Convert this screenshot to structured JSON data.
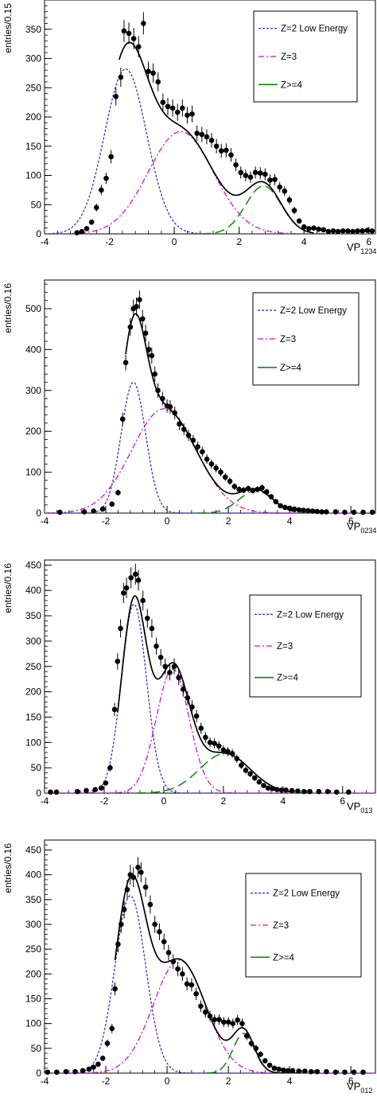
{
  "colors": {
    "axis": "#000000",
    "data": "#000000",
    "fit": "#000000",
    "z2": "#3a32c8",
    "z3": "#cc11cc",
    "z4": "#0a8a0a"
  },
  "chart_data": [
    {
      "type": "scatter",
      "ylabel": "entries/0.15",
      "xlabel_main": "VP",
      "xlabel_sub": "1234",
      "xlim": [
        -4,
        6.2
      ],
      "ylim": [
        0,
        400
      ],
      "xticks": [
        -4,
        -2,
        0,
        2,
        4,
        6
      ],
      "yticks": [
        0,
        50,
        100,
        150,
        200,
        250,
        300,
        350
      ],
      "legend": [
        {
          "key": "z2",
          "label": "Z=2 Low Energy"
        },
        {
          "key": "z3",
          "label": "Z=3"
        },
        {
          "key": "z4",
          "label": "Z>=4"
        }
      ],
      "components": {
        "z2": {
          "A": 282,
          "mu": -1.5,
          "sigma": 0.65
        },
        "z3": {
          "A": 175,
          "mu": 0.2,
          "sigma": 1.0
        },
        "z4": {
          "A": 82,
          "mu": 2.75,
          "sigma": 0.55
        }
      },
      "points": [
        [
          -3.0,
          2
        ],
        [
          -2.85,
          4
        ],
        [
          -2.7,
          9
        ],
        [
          -2.55,
          20
        ],
        [
          -2.4,
          45
        ],
        [
          -2.25,
          75
        ],
        [
          -2.1,
          95
        ],
        [
          -1.95,
          132
        ],
        [
          -1.8,
          235
        ],
        [
          -1.65,
          268
        ],
        [
          -1.55,
          347
        ],
        [
          -1.4,
          343
        ],
        [
          -1.25,
          334
        ],
        [
          -1.1,
          320
        ],
        [
          -0.95,
          360
        ],
        [
          -0.8,
          278
        ],
        [
          -0.65,
          275
        ],
        [
          -0.5,
          260
        ],
        [
          -0.35,
          225
        ],
        [
          -0.2,
          218
        ],
        [
          -0.05,
          215
        ],
        [
          0.1,
          208
        ],
        [
          0.25,
          215
        ],
        [
          0.4,
          203
        ],
        [
          0.55,
          205
        ],
        [
          0.7,
          172
        ],
        [
          0.85,
          170
        ],
        [
          1.0,
          166
        ],
        [
          1.15,
          160
        ],
        [
          1.3,
          150
        ],
        [
          1.45,
          142
        ],
        [
          1.6,
          143
        ],
        [
          1.75,
          135
        ],
        [
          1.9,
          118
        ],
        [
          2.05,
          105
        ],
        [
          2.2,
          100
        ],
        [
          2.35,
          97
        ],
        [
          2.5,
          105
        ],
        [
          2.65,
          104
        ],
        [
          2.8,
          102
        ],
        [
          2.95,
          92
        ],
        [
          3.1,
          93
        ],
        [
          3.25,
          80
        ],
        [
          3.4,
          73
        ],
        [
          3.55,
          58
        ],
        [
          3.7,
          40
        ],
        [
          3.85,
          22
        ],
        [
          4.0,
          12
        ],
        [
          4.15,
          9
        ],
        [
          4.3,
          10
        ],
        [
          4.45,
          8
        ],
        [
          4.6,
          7
        ],
        [
          4.75,
          4
        ],
        [
          4.9,
          5
        ],
        [
          5.05,
          4
        ],
        [
          5.2,
          5
        ],
        [
          5.35,
          5
        ],
        [
          5.5,
          4
        ],
        [
          5.65,
          5
        ],
        [
          5.8,
          5
        ],
        [
          5.95,
          6
        ],
        [
          6.1,
          5
        ]
      ],
      "fit_range": [
        -1.7,
        4.3
      ]
    },
    {
      "type": "scatter",
      "ylabel": "entries/0.16",
      "xlabel_main": "VP",
      "xlabel_sub": "0234",
      "xlim": [
        -4,
        6.8
      ],
      "ylim": [
        0,
        570
      ],
      "xticks": [
        -4,
        -2,
        0,
        2,
        4,
        6
      ],
      "yticks": [
        0,
        100,
        200,
        300,
        400,
        500
      ],
      "legend": [
        {
          "key": "z2",
          "label": "Z=2 Low Energy"
        },
        {
          "key": "z3",
          "label": "Z=3"
        },
        {
          "key": "z4",
          "label": "Z>=4"
        }
      ],
      "components": {
        "z2": {
          "A": 320,
          "mu": -1.1,
          "sigma": 0.4
        },
        "z3": {
          "A": 255,
          "mu": -0.1,
          "sigma": 1.05
        },
        "z4": {
          "A": 55,
          "mu": 2.9,
          "sigma": 0.55
        }
      },
      "points": [
        [
          -3.5,
          2
        ],
        [
          -2.7,
          3
        ],
        [
          -2.4,
          5
        ],
        [
          -2.1,
          10
        ],
        [
          -1.8,
          22
        ],
        [
          -1.6,
          50
        ],
        [
          -1.45,
          230
        ],
        [
          -1.35,
          368
        ],
        [
          -1.2,
          455
        ],
        [
          -1.1,
          500
        ],
        [
          -1.0,
          505
        ],
        [
          -0.9,
          522
        ],
        [
          -0.8,
          475
        ],
        [
          -0.7,
          440
        ],
        [
          -0.6,
          400
        ],
        [
          -0.5,
          385
        ],
        [
          -0.4,
          340
        ],
        [
          -0.3,
          300
        ],
        [
          -0.15,
          280
        ],
        [
          0.0,
          262
        ],
        [
          0.1,
          260
        ],
        [
          0.25,
          245
        ],
        [
          0.4,
          218
        ],
        [
          0.55,
          205
        ],
        [
          0.7,
          190
        ],
        [
          0.85,
          178
        ],
        [
          1.0,
          162
        ],
        [
          1.15,
          150
        ],
        [
          1.3,
          132
        ],
        [
          1.45,
          120
        ],
        [
          1.6,
          110
        ],
        [
          1.75,
          100
        ],
        [
          1.9,
          88
        ],
        [
          2.05,
          78
        ],
        [
          2.2,
          65
        ],
        [
          2.35,
          58
        ],
        [
          2.5,
          56
        ],
        [
          2.65,
          60
        ],
        [
          2.8,
          55
        ],
        [
          2.95,
          58
        ],
        [
          3.1,
          62
        ],
        [
          3.25,
          52
        ],
        [
          3.4,
          40
        ],
        [
          3.55,
          28
        ],
        [
          3.7,
          18
        ],
        [
          3.85,
          14
        ],
        [
          4.0,
          12
        ],
        [
          4.15,
          10
        ],
        [
          4.3,
          8
        ],
        [
          4.45,
          7
        ],
        [
          4.6,
          6
        ],
        [
          4.75,
          5
        ],
        [
          4.9,
          4
        ],
        [
          5.05,
          3
        ],
        [
          5.2,
          3
        ],
        [
          5.5,
          3
        ],
        [
          5.8,
          2
        ],
        [
          6.1,
          2
        ],
        [
          6.4,
          2
        ],
        [
          6.7,
          2
        ]
      ],
      "fit_range": [
        -1.35,
        4.2
      ]
    },
    {
      "type": "scatter",
      "ylabel": "entries/0.16",
      "xlabel_main": "VP",
      "xlabel_sub": "013",
      "xlim": [
        -4,
        7.1
      ],
      "ylim": [
        0,
        460
      ],
      "xticks": [
        -4,
        -2,
        0,
        2,
        4,
        6
      ],
      "yticks": [
        0,
        50,
        100,
        150,
        200,
        250,
        300,
        350,
        400,
        450
      ],
      "legend": [
        {
          "key": "z2",
          "label": "Z=2 Low Energy"
        },
        {
          "key": "z3",
          "label": "Z=3"
        },
        {
          "key": "z4",
          "label": "Z>=4"
        }
      ],
      "components": {
        "z2": {
          "A": 373,
          "mu": -1.0,
          "sigma": 0.42
        },
        "z3": {
          "A": 245,
          "mu": 0.3,
          "sigma": 0.55
        },
        "z4": {
          "A": 78,
          "mu": 2.05,
          "sigma": 0.85
        }
      },
      "points": [
        [
          -3.8,
          2
        ],
        [
          -3.6,
          2
        ],
        [
          -2.9,
          3
        ],
        [
          -2.6,
          5
        ],
        [
          -2.3,
          7
        ],
        [
          -2.1,
          10
        ],
        [
          -1.95,
          20
        ],
        [
          -1.8,
          50
        ],
        [
          -1.65,
          165
        ],
        [
          -1.55,
          260
        ],
        [
          -1.45,
          325
        ],
        [
          -1.35,
          395
        ],
        [
          -1.25,
          405
        ],
        [
          -1.1,
          425
        ],
        [
          -0.95,
          432
        ],
        [
          -0.85,
          420
        ],
        [
          -0.7,
          380
        ],
        [
          -0.55,
          345
        ],
        [
          -0.4,
          325
        ],
        [
          -0.25,
          290
        ],
        [
          -0.1,
          268
        ],
        [
          0.05,
          250
        ],
        [
          0.2,
          238
        ],
        [
          0.35,
          250
        ],
        [
          0.5,
          228
        ],
        [
          0.65,
          205
        ],
        [
          0.8,
          188
        ],
        [
          0.95,
          170
        ],
        [
          1.1,
          152
        ],
        [
          1.25,
          128
        ],
        [
          1.4,
          110
        ],
        [
          1.55,
          100
        ],
        [
          1.7,
          98
        ],
        [
          1.85,
          93
        ],
        [
          2.0,
          85
        ],
        [
          2.15,
          82
        ],
        [
          2.3,
          78
        ],
        [
          2.45,
          68
        ],
        [
          2.6,
          55
        ],
        [
          2.75,
          45
        ],
        [
          2.9,
          38
        ],
        [
          3.05,
          30
        ],
        [
          3.2,
          22
        ],
        [
          3.35,
          15
        ],
        [
          3.5,
          10
        ],
        [
          3.65,
          9
        ],
        [
          3.8,
          7
        ],
        [
          3.95,
          6
        ],
        [
          4.1,
          6
        ],
        [
          4.3,
          5
        ],
        [
          4.5,
          4
        ],
        [
          4.7,
          3
        ],
        [
          4.9,
          3
        ],
        [
          5.2,
          3
        ],
        [
          5.5,
          3
        ],
        [
          5.8,
          2
        ],
        [
          6.2,
          2
        ]
      ],
      "fit_range": [
        -1.55,
        4.3
      ]
    },
    {
      "type": "scatter",
      "ylabel": "entries/0.16",
      "xlabel_main": "VP",
      "xlabel_sub": "012",
      "xlim": [
        -4,
        6.8
      ],
      "ylim": [
        0,
        470
      ],
      "xticks": [
        -4,
        -2,
        0,
        2,
        4,
        6
      ],
      "yticks": [
        0,
        50,
        100,
        150,
        200,
        250,
        300,
        350,
        400,
        450
      ],
      "legend": [
        {
          "key": "z2",
          "label": "Z=2 Low Energy"
        },
        {
          "key": "z3",
          "label": "Z=3"
        },
        {
          "key": "z4",
          "label": "Z>=4"
        }
      ],
      "components": {
        "z2": {
          "A": 358,
          "mu": -1.2,
          "sigma": 0.5
        },
        "z3": {
          "A": 228,
          "mu": 0.4,
          "sigma": 0.85
        },
        "z4": {
          "A": 80,
          "mu": 2.5,
          "sigma": 0.35
        }
      },
      "points": [
        [
          -3.9,
          2
        ],
        [
          -3.6,
          2
        ],
        [
          -3.3,
          3
        ],
        [
          -3.0,
          3
        ],
        [
          -2.75,
          5
        ],
        [
          -2.55,
          8
        ],
        [
          -2.4,
          12
        ],
        [
          -2.25,
          18
        ],
        [
          -2.1,
          30
        ],
        [
          -1.95,
          60
        ],
        [
          -1.8,
          90
        ],
        [
          -1.7,
          170
        ],
        [
          -1.6,
          260
        ],
        [
          -1.5,
          300
        ],
        [
          -1.4,
          330
        ],
        [
          -1.3,
          370
        ],
        [
          -1.2,
          400
        ],
        [
          -1.1,
          395
        ],
        [
          -0.95,
          415
        ],
        [
          -0.85,
          405
        ],
        [
          -0.7,
          375
        ],
        [
          -0.55,
          340
        ],
        [
          -0.4,
          300
        ],
        [
          -0.25,
          285
        ],
        [
          -0.1,
          265
        ],
        [
          0.05,
          243
        ],
        [
          0.2,
          225
        ],
        [
          0.35,
          210
        ],
        [
          0.5,
          200
        ],
        [
          0.65,
          180
        ],
        [
          0.8,
          178
        ],
        [
          0.95,
          160
        ],
        [
          1.1,
          135
        ],
        [
          1.25,
          123
        ],
        [
          1.4,
          115
        ],
        [
          1.55,
          108
        ],
        [
          1.7,
          108
        ],
        [
          1.85,
          103
        ],
        [
          2.0,
          103
        ],
        [
          2.15,
          100
        ],
        [
          2.3,
          107
        ],
        [
          2.45,
          100
        ],
        [
          2.6,
          75
        ],
        [
          2.75,
          60
        ],
        [
          2.9,
          50
        ],
        [
          3.05,
          38
        ],
        [
          3.2,
          25
        ],
        [
          3.35,
          16
        ],
        [
          3.5,
          10
        ],
        [
          3.65,
          8
        ],
        [
          3.8,
          6
        ],
        [
          3.95,
          5
        ],
        [
          4.1,
          5
        ],
        [
          4.3,
          4
        ],
        [
          4.5,
          4
        ],
        [
          4.7,
          3
        ],
        [
          4.9,
          3
        ],
        [
          5.2,
          3
        ],
        [
          5.5,
          2
        ],
        [
          5.8,
          2
        ],
        [
          6.1,
          2
        ],
        [
          6.4,
          2
        ]
      ],
      "fit_range": [
        -1.7,
        4.3
      ]
    }
  ]
}
